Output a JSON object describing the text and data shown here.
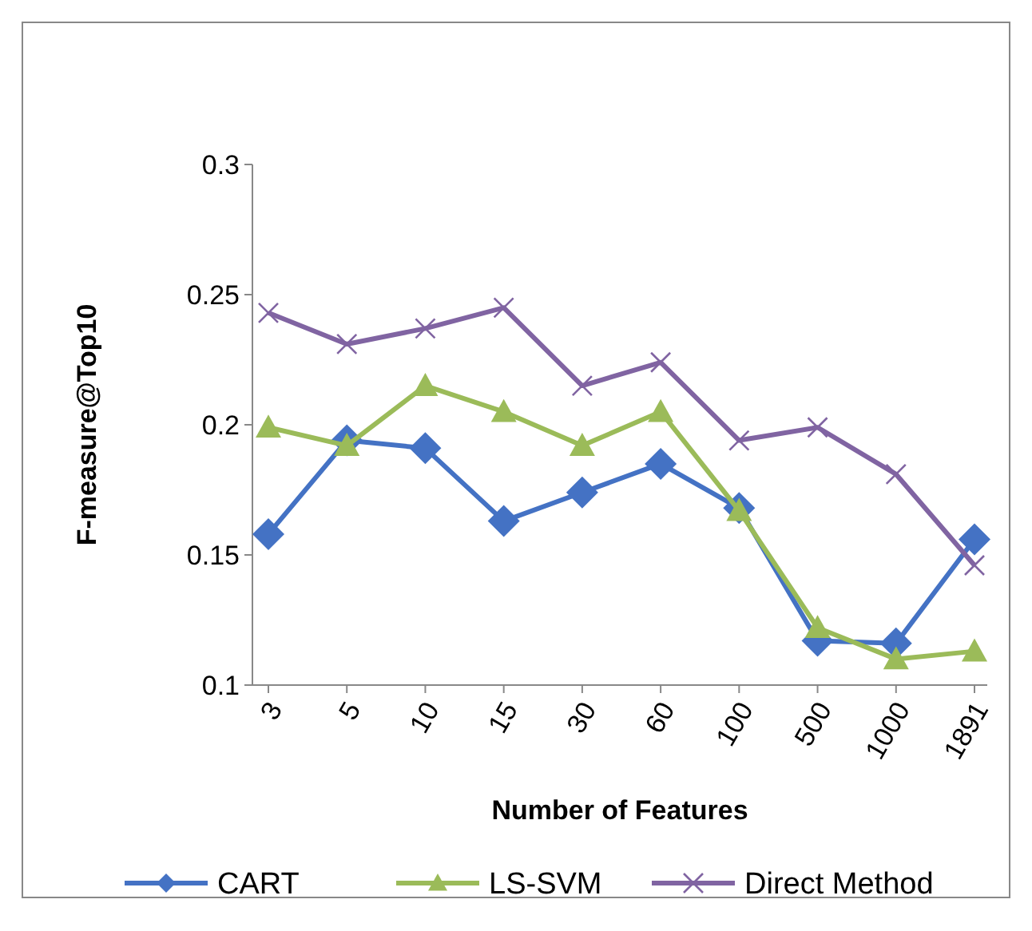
{
  "chart_data": {
    "type": "line",
    "xlabel": "Number of Features",
    "ylabel": "F-measure@Top10",
    "categories": [
      "3",
      "5",
      "10",
      "15",
      "30",
      "60",
      "100",
      "500",
      "1000",
      "1891"
    ],
    "series": [
      {
        "name": "CART",
        "color": "#4472c4",
        "marker": "diamond",
        "values": [
          0.158,
          0.194,
          0.191,
          0.163,
          0.174,
          0.185,
          0.168,
          0.117,
          0.116,
          0.156
        ]
      },
      {
        "name": "LS-SVM",
        "color": "#9bbb59",
        "marker": "triangle",
        "values": [
          0.199,
          0.192,
          0.215,
          0.205,
          0.192,
          0.205,
          0.167,
          0.122,
          0.11,
          0.113
        ]
      },
      {
        "name": "Direct Method",
        "color": "#8064a2",
        "marker": "cross",
        "values": [
          0.243,
          0.231,
          0.237,
          0.245,
          0.215,
          0.224,
          0.194,
          0.199,
          0.181,
          0.146
        ]
      }
    ],
    "ylim": [
      0.1,
      0.3
    ],
    "yticks": [
      0.1,
      0.15,
      0.2,
      0.25,
      0.3
    ],
    "grid": false,
    "legend": "bottom"
  }
}
